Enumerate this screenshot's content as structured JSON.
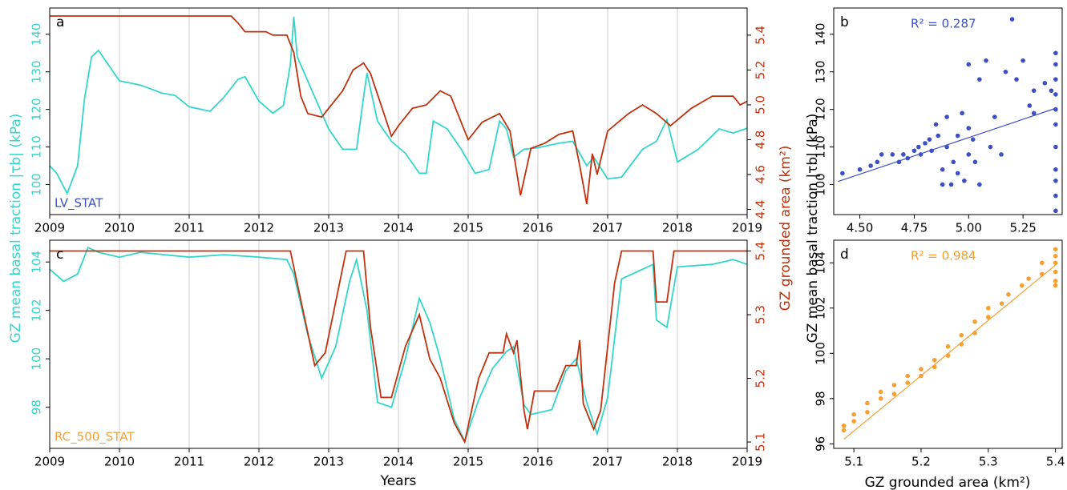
{
  "chart_data": [
    {
      "type": "line",
      "panel_label": "a",
      "annotation": "LV_STAT",
      "annotation_color": "#3d50c3",
      "y_label": "GZ mean basal traction |τb| (kPa)",
      "y2_label": "GZ grounded area (km²)",
      "xlim": [
        2009,
        2019
      ],
      "xticks": [
        2009,
        2010,
        2011,
        2012,
        2013,
        2014,
        2015,
        2016,
        2017,
        2018,
        2019
      ],
      "grid": true,
      "ylim": [
        92,
        147
      ],
      "yticks": [
        100,
        110,
        120,
        130,
        140
      ],
      "y2lim": [
        4.37,
        5.556
      ],
      "y2ticks": [
        4.4,
        4.6,
        4.8,
        {
          "value": 5,
          "label": "5.0"
        },
        5.2,
        5.4
      ],
      "series": [
        {
          "name": "GZ mean basal traction",
          "color": "#33d6c8",
          "axis": "y",
          "x": [
            2009,
            2009.1,
            2009.25,
            2009.4,
            2009.5,
            2009.6,
            2009.7,
            2009.8,
            2010,
            2010.3,
            2010.6,
            2010.8,
            2011,
            2011.3,
            2011.5,
            2011.7,
            2011.8,
            2012,
            2012.2,
            2012.35,
            2012.45,
            2012.5,
            2012.55,
            2012.7,
            2012.9,
            2013,
            2013.2,
            2013.4,
            2013.5,
            2013.55,
            2013.7,
            2013.9,
            2014.1,
            2014.3,
            2014.4,
            2014.5,
            2014.7,
            2014.9,
            2015.1,
            2015.3,
            2015.45,
            2015.55,
            2015.65,
            2015.8,
            2016,
            2016.3,
            2016.5,
            2016.7,
            2016.8,
            2017,
            2017.2,
            2017.5,
            2017.7,
            2017.85,
            2018,
            2018.3,
            2018.6,
            2018.8,
            2019
          ],
          "values": [
            105,
            103,
            97.6,
            105,
            123,
            134,
            135.7,
            133,
            127.6,
            126.5,
            124.4,
            123.7,
            120.7,
            119.5,
            123.3,
            128,
            128.7,
            122.2,
            119,
            121,
            131.9,
            144.7,
            134,
            127.6,
            119,
            114.8,
            109.4,
            109.4,
            123.3,
            129.7,
            116.9,
            111.5,
            108.3,
            103,
            103,
            116.9,
            114.8,
            109.4,
            103,
            104,
            116.9,
            114.8,
            107.3,
            109.4,
            109.8,
            111,
            111.5,
            105,
            107.3,
            101.5,
            102,
            109.4,
            111.5,
            117.3,
            106,
            109.4,
            114.8,
            113.7,
            115
          ]
        },
        {
          "name": "GZ grounded area",
          "color": "#c0310f",
          "axis": "y2",
          "x": [
            2009,
            2011.6,
            2011.7,
            2011.8,
            2012.1,
            2012.2,
            2012.4,
            2012.5,
            2012.6,
            2012.7,
            2012.9,
            2013,
            2013.2,
            2013.35,
            2013.5,
            2013.6,
            2013.75,
            2013.9,
            2014,
            2014.2,
            2014.4,
            2014.6,
            2014.75,
            2014.9,
            2015,
            2015.2,
            2015.45,
            2015.6,
            2015.75,
            2015.9,
            2016.1,
            2016.3,
            2016.5,
            2016.6,
            2016.7,
            2016.78,
            2016.85,
            2017,
            2017.3,
            2017.5,
            2017.7,
            2017.9,
            2018.2,
            2018.5,
            2018.8,
            2018.9,
            2019
          ],
          "values": [
            5.51,
            5.51,
            5.47,
            5.42,
            5.42,
            5.4,
            5.4,
            5.3,
            5.05,
            4.95,
            4.93,
            4.98,
            5.08,
            5.2,
            5.24,
            5.18,
            5,
            4.82,
            4.88,
            4.98,
            5,
            5.08,
            5.05,
            4.9,
            4.8,
            4.9,
            4.95,
            4.85,
            4.48,
            4.75,
            4.78,
            4.83,
            4.85,
            4.65,
            4.43,
            4.72,
            4.6,
            4.85,
            4.95,
            5,
            4.95,
            4.88,
            4.98,
            5.05,
            5.05,
            5,
            5.02
          ]
        }
      ]
    },
    {
      "type": "scatter",
      "panel_label": "b",
      "annotation": "R² = 0.287",
      "annotation_color": "#3d50c3",
      "y_label": "GZ mean basal traction |τb| (kPa)",
      "color": "#3d50c3",
      "xlim": [
        4.38,
        5.43
      ],
      "xticks": [
        {
          "value": 4.5,
          "label": "4.50"
        },
        4.75,
        {
          "value": 5,
          "label": "5.00"
        },
        5.25
      ],
      "ylim": [
        92,
        147
      ],
      "yticks": [
        100,
        110,
        120,
        130,
        140
      ],
      "x": [
        4.42,
        4.5,
        4.55,
        4.58,
        4.6,
        4.65,
        4.68,
        4.7,
        4.72,
        4.75,
        4.77,
        4.78,
        4.8,
        4.82,
        4.83,
        4.85,
        4.86,
        4.88,
        4.88,
        4.9,
        4.9,
        4.92,
        4.93,
        4.95,
        4.95,
        4.97,
        4.98,
        5,
        5,
        5,
        5.02,
        5.03,
        5.05,
        5.05,
        5.08,
        5.1,
        5.12,
        5.15,
        5.17,
        5.2,
        5.22,
        5.25,
        5.28,
        5.3,
        5.3,
        5.35,
        5.38,
        5.4,
        5.4,
        5.4,
        5.4,
        5.4,
        5.4,
        5.4,
        5.4,
        5.4,
        5.4,
        5.4
      ],
      "values": [
        103,
        104,
        105,
        106,
        108,
        108,
        106,
        108,
        107,
        109,
        110,
        108,
        111,
        112,
        109,
        116,
        113,
        100,
        104,
        118,
        110,
        100,
        106,
        113,
        103,
        119,
        101,
        132,
        115,
        108,
        112,
        106,
        128,
        100,
        133,
        110,
        118,
        108,
        130,
        144,
        128,
        133,
        121,
        125,
        119,
        127,
        125,
        135,
        132,
        128,
        124,
        120,
        116,
        104,
        101,
        97,
        93,
        110
      ],
      "fit": {
        "x": [
          4.4,
          5.4
        ],
        "values": [
          100.8,
          120.3
        ]
      }
    },
    {
      "type": "line",
      "panel_label": "c",
      "annotation": "RC_500_STAT",
      "annotation_color": "#f5a031",
      "x_label": "Years",
      "xlim": [
        2009,
        2019
      ],
      "xticks": [
        2009,
        2010,
        2011,
        2012,
        2013,
        2014,
        2015,
        2016,
        2017,
        2018,
        2019
      ],
      "grid": true,
      "ylim": [
        96.3,
        104.9
      ],
      "yticks": [
        98,
        100,
        102,
        104
      ],
      "y2lim": [
        5.09,
        5.417
      ],
      "y2ticks": [
        5.1,
        5.2,
        5.3,
        5.4
      ],
      "series": [
        {
          "name": "GZ mean basal traction",
          "color": "#33d6c8",
          "axis": "y",
          "x": [
            2009,
            2009.2,
            2009.4,
            2009.55,
            2009.7,
            2010,
            2010.3,
            2011,
            2011.5,
            2012,
            2012.4,
            2012.5,
            2012.7,
            2012.9,
            2013.1,
            2013.3,
            2013.4,
            2013.55,
            2013.7,
            2013.9,
            2014.1,
            2014.3,
            2014.45,
            2014.6,
            2014.8,
            2014.95,
            2015.15,
            2015.35,
            2015.55,
            2015.65,
            2015.8,
            2015.9,
            2016.2,
            2016.4,
            2016.55,
            2016.7,
            2016.85,
            2017,
            2017.2,
            2017.65,
            2017.7,
            2017.85,
            2018,
            2018.5,
            2018.8,
            2019
          ],
          "values": [
            103.7,
            103.2,
            103.5,
            104.6,
            104.4,
            104.2,
            104.4,
            104.2,
            104.3,
            104.2,
            104.1,
            103.5,
            101,
            99.2,
            100.5,
            103.2,
            104.1,
            102,
            98.2,
            98,
            100,
            102.5,
            101.5,
            100,
            97.5,
            96.6,
            98.3,
            99.6,
            100.3,
            100.5,
            98.1,
            97.7,
            97.9,
            99.5,
            100,
            98.2,
            96.9,
            98.4,
            103.3,
            103.9,
            101.6,
            101.3,
            103.8,
            103.9,
            104.1,
            103.9
          ]
        },
        {
          "name": "GZ grounded area",
          "color": "#c0310f",
          "axis": "y2",
          "x": [
            2009,
            2012.45,
            2012.8,
            2012.95,
            2013.25,
            2013.5,
            2013.6,
            2013.75,
            2013.9,
            2014.1,
            2014.3,
            2014.45,
            2014.6,
            2014.8,
            2014.95,
            2015.15,
            2015.3,
            2015.5,
            2015.55,
            2015.65,
            2015.7,
            2015.8,
            2015.85,
            2015.95,
            2016.25,
            2016.4,
            2016.55,
            2016.6,
            2016.65,
            2016.8,
            2016.9,
            2017.1,
            2017.2,
            2017.65,
            2017.7,
            2017.85,
            2017.95,
            2019
          ],
          "values": [
            5.4,
            5.4,
            5.22,
            5.24,
            5.4,
            5.4,
            5.28,
            5.17,
            5.17,
            5.25,
            5.3,
            5.23,
            5.2,
            5.13,
            5.1,
            5.2,
            5.24,
            5.24,
            5.27,
            5.24,
            5.26,
            5.15,
            5.12,
            5.18,
            5.18,
            5.22,
            5.22,
            5.26,
            5.16,
            5.12,
            5.15,
            5.35,
            5.4,
            5.4,
            5.32,
            5.32,
            5.4,
            5.4
          ]
        }
      ]
    },
    {
      "type": "scatter",
      "panel_label": "d",
      "annotation": "R² = 0.984",
      "annotation_color": "#f5a031",
      "x_label": "GZ grounded area (km²)",
      "color": "#f5a031",
      "xlim": [
        5.07,
        5.41
      ],
      "xticks": [
        5.1,
        5.2,
        5.3,
        5.4
      ],
      "ylim": [
        95.8,
        105
      ],
      "yticks": [
        96,
        98,
        100,
        102,
        104
      ],
      "x": [
        5.085,
        5.085,
        5.1,
        5.1,
        5.12,
        5.12,
        5.14,
        5.14,
        5.16,
        5.16,
        5.18,
        5.18,
        5.2,
        5.2,
        5.22,
        5.22,
        5.24,
        5.24,
        5.26,
        5.26,
        5.28,
        5.28,
        5.3,
        5.3,
        5.32,
        5.33,
        5.35,
        5.36,
        5.38,
        5.38,
        5.4,
        5.4,
        5.4,
        5.4,
        5.4,
        5.4
      ],
      "values": [
        96.6,
        96.8,
        97,
        97.3,
        97.4,
        97.8,
        98,
        98.3,
        98.2,
        98.6,
        98.7,
        99,
        99,
        99.3,
        99.4,
        99.7,
        99.9,
        100.3,
        100.4,
        100.8,
        100.9,
        101.4,
        101.6,
        102,
        102.2,
        102.6,
        103,
        103.3,
        103.5,
        104,
        103.2,
        103.6,
        104,
        104.3,
        104.6,
        103
      ],
      "fit": {
        "x": [
          5.085,
          5.4
        ],
        "values": [
          96.2,
          103.9
        ]
      }
    }
  ]
}
